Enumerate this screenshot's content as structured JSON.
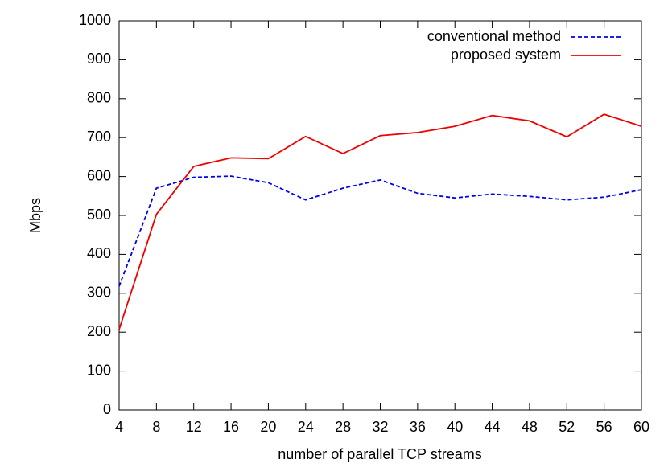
{
  "chart_data": {
    "type": "line",
    "xlabel": "number of parallel TCP streams",
    "ylabel": "Mbps",
    "x": [
      4,
      8,
      12,
      16,
      20,
      24,
      28,
      32,
      36,
      40,
      44,
      48,
      52,
      56,
      60
    ],
    "series": [
      {
        "name": "conventional method",
        "color": "#0000ee",
        "style": "dashed",
        "values": [
          318,
          570,
          598,
          601,
          584,
          540,
          570,
          591,
          557,
          545,
          555,
          549,
          540,
          547,
          566
        ]
      },
      {
        "name": "proposed system",
        "color": "#ee0000",
        "style": "solid",
        "values": [
          207,
          503,
          626,
          648,
          646,
          703,
          659,
          705,
          713,
          729,
          757,
          743,
          702,
          760,
          729
        ]
      }
    ],
    "xlim": [
      4,
      60
    ],
    "xticks": [
      4,
      8,
      12,
      16,
      20,
      24,
      28,
      32,
      36,
      40,
      44,
      48,
      52,
      56,
      60
    ],
    "ylim": [
      0,
      1000
    ],
    "yticks": [
      0,
      100,
      200,
      300,
      400,
      500,
      600,
      700,
      800,
      900,
      1000
    ],
    "legend": "top-right"
  }
}
